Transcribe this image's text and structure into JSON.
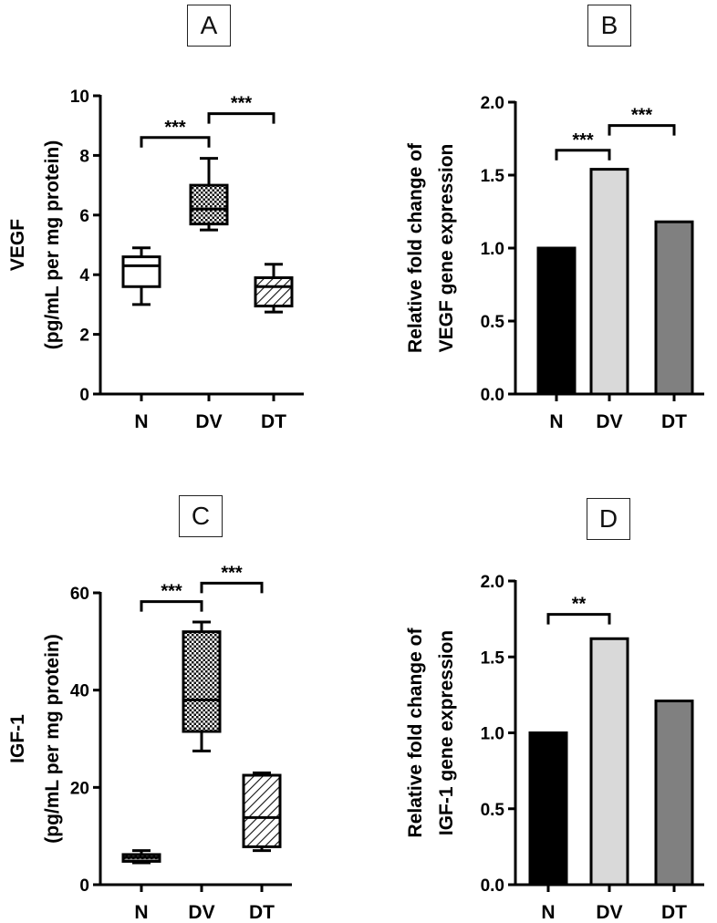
{
  "panels": {
    "A": {
      "label": "A"
    },
    "B": {
      "label": "B"
    },
    "C": {
      "label": "C"
    },
    "D": {
      "label": "D"
    }
  },
  "colors": {
    "axis": "#000000",
    "N": "#000000",
    "DV": "#d9d9d9",
    "DT": "#808080"
  },
  "chart_data": [
    {
      "id": "A",
      "type": "box",
      "ylabel_line1": "VEGF",
      "ylabel_line2": "(pg/mL per mg protein)",
      "categories": [
        "N",
        "DV",
        "DT"
      ],
      "ylim": [
        0,
        10
      ],
      "yticks": [
        0,
        2,
        4,
        6,
        8,
        10
      ],
      "boxes": [
        {
          "name": "N",
          "min": 3.0,
          "q1": 3.6,
          "median": 4.3,
          "q3": 4.6,
          "max": 4.9,
          "pattern": "none"
        },
        {
          "name": "DV",
          "min": 5.5,
          "q1": 5.7,
          "median": 6.2,
          "q3": 7.0,
          "max": 7.9,
          "pattern": "check"
        },
        {
          "name": "DT",
          "min": 2.75,
          "q1": 2.95,
          "median": 3.6,
          "q3": 3.9,
          "max": 4.35,
          "pattern": "hatch"
        }
      ],
      "significance": [
        {
          "from": "N",
          "to": "DV",
          "y": 8.6,
          "label": "***"
        },
        {
          "from": "DV",
          "to": "DT",
          "y": 9.4,
          "label": "***"
        }
      ]
    },
    {
      "id": "B",
      "type": "bar",
      "ylabel_line1": "Relative fold change of",
      "ylabel_line2": "VEGF gene expression",
      "categories": [
        "N",
        "DV",
        "DT"
      ],
      "values": [
        1.0,
        1.54,
        1.18
      ],
      "ylim": [
        0,
        2.0
      ],
      "yticks": [
        "0.0",
        "0.5",
        "1.0",
        "1.5",
        "2.0"
      ],
      "significance": [
        {
          "from": "N",
          "to": "DV",
          "y": 1.67,
          "label": "***"
        },
        {
          "from": "DV",
          "to": "DT",
          "y": 1.84,
          "label": "***"
        }
      ]
    },
    {
      "id": "C",
      "type": "box",
      "ylabel_line1": "IGF-1",
      "ylabel_line2": "(pg/mL per mg protein)",
      "categories": [
        "N",
        "DV",
        "DT"
      ],
      "ylim": [
        0,
        60
      ],
      "yticks": [
        0,
        20,
        40,
        60
      ],
      "boxes": [
        {
          "name": "N",
          "min": 4.5,
          "q1": 4.8,
          "median": 5.6,
          "q3": 6.2,
          "max": 7.0,
          "pattern": "check"
        },
        {
          "name": "DV",
          "min": 27.5,
          "q1": 31.5,
          "median": 38.0,
          "q3": 52.0,
          "max": 54.0,
          "pattern": "check"
        },
        {
          "name": "DT",
          "min": 7.0,
          "q1": 7.8,
          "median": 13.8,
          "q3": 22.5,
          "max": 23.0,
          "pattern": "hatch"
        }
      ],
      "significance": [
        {
          "from": "N",
          "to": "DV",
          "y": 58.2,
          "label": "***"
        },
        {
          "from": "DV",
          "to": "DT",
          "y": 62.0,
          "label": "***"
        }
      ]
    },
    {
      "id": "D",
      "type": "bar",
      "ylabel_line1": "Relative fold change of",
      "ylabel_line2": "IGF-1 gene expression",
      "categories": [
        "N",
        "DV",
        "DT"
      ],
      "values": [
        1.0,
        1.62,
        1.21
      ],
      "ylim": [
        0,
        2.0
      ],
      "yticks": [
        "0.0",
        "0.5",
        "1.0",
        "1.5",
        "2.0"
      ],
      "significance": [
        {
          "from": "N",
          "to": "DV",
          "y": 1.78,
          "label": "**"
        }
      ]
    }
  ]
}
